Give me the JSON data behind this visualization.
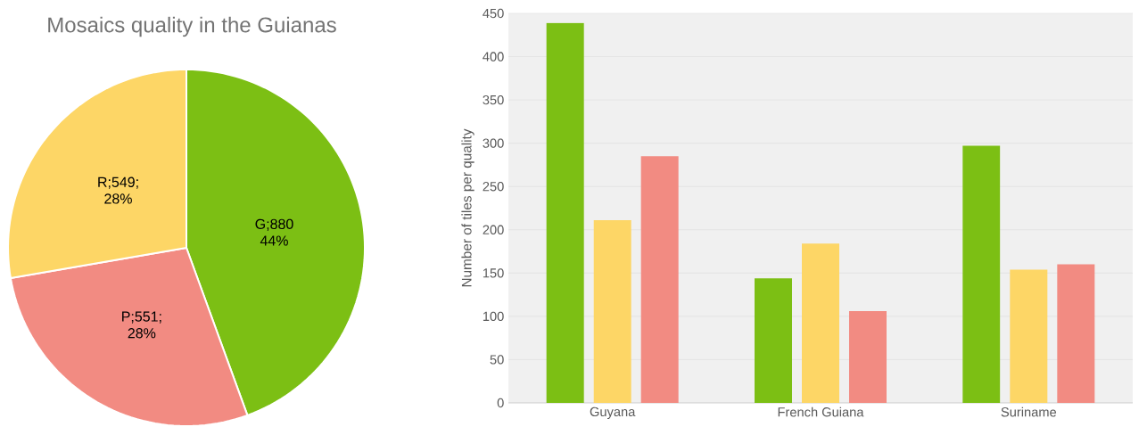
{
  "chart_data": [
    {
      "type": "pie",
      "title": "Mosaics quality in the Guianas",
      "categories": [
        null,
        null,
        null
      ],
      "values": [
        880,
        551,
        549
      ],
      "colors": [
        "#7cbf14",
        "#f28b82",
        "#fdd666"
      ],
      "value_labels": [
        "G;880 44%",
        "P;551; 28%",
        "R;549; 28%"
      ]
    },
    {
      "type": "bar",
      "categories": [
        "Guyana",
        "French Guiana",
        "Suriname"
      ],
      "series": [
        {
          "color": "#7cbf14",
          "values": [
            439,
            144,
            297
          ]
        },
        {
          "color": "#fdd666",
          "values": [
            211,
            184,
            154
          ]
        },
        {
          "color": "#f28b82",
          "values": [
            285,
            106,
            160
          ]
        }
      ],
      "ylabel": "Number of tiles per quality",
      "ylim": [
        0,
        450
      ],
      "yticks": [
        0,
        50,
        100,
        150,
        200,
        250,
        300,
        350,
        400,
        450
      ],
      "grid": "y"
    }
  ]
}
